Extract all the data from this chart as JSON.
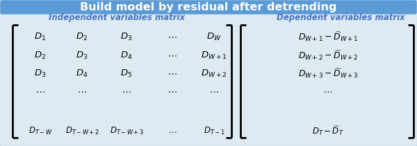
{
  "title": "Build model by residual after detrending",
  "title_bg": "#5B9BD5",
  "title_color": "#FFFFFF",
  "subtitle_left": "Independent variables matrix",
  "subtitle_right": "Dependent variables matrix",
  "subtitle_color": "#4472C4",
  "bg_color": "#DEEAF1",
  "border_color": "#5B9BD5",
  "figsize": [
    6.0,
    2.11
  ],
  "dpi": 100
}
